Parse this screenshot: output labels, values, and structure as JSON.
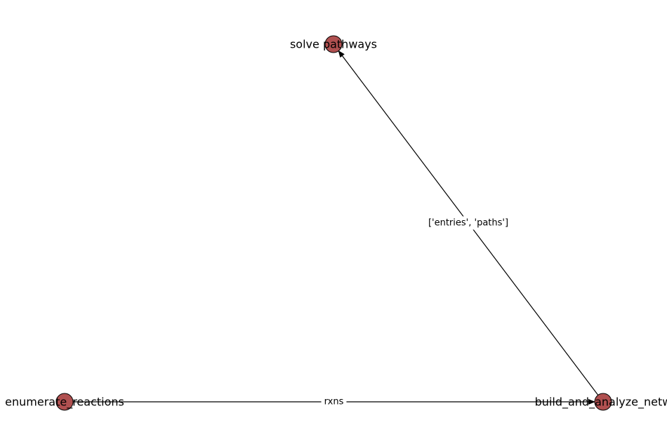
{
  "graph": {
    "node_color": "#b05050",
    "node_stroke": "#000000",
    "edge_color": "#000000",
    "nodes": [
      {
        "id": "solve_pathways",
        "label": "solve pathways"
      },
      {
        "id": "enumerate_reactions",
        "label": "enumerate_reactions"
      },
      {
        "id": "build_and_analyze_network",
        "label": "build_and_analyze_netw"
      }
    ],
    "edges": [
      {
        "from": "enumerate_reactions",
        "to": "build_and_analyze_network",
        "label": "rxns"
      },
      {
        "from": "build_and_analyze_network",
        "to": "solve_pathways",
        "label": "['entries', 'paths']"
      }
    ]
  }
}
